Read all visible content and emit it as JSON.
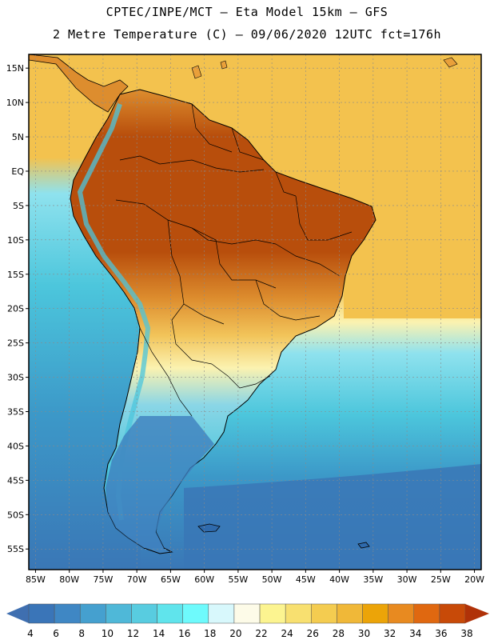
{
  "header": {
    "line1": "CPTEC/INPE/MCT –  Eta Model 15km – GFS",
    "line2": "2 Metre Temperature (C) – 09/06/2020 12UTC fct=176h"
  },
  "map": {
    "lon_range": [
      -86,
      -19
    ],
    "lat_range": [
      17,
      -58
    ],
    "lat_ticks": [
      {
        "value": 15,
        "label": "15N"
      },
      {
        "value": 10,
        "label": "10N"
      },
      {
        "value": 5,
        "label": "5N"
      },
      {
        "value": 0,
        "label": "EQ"
      },
      {
        "value": -5,
        "label": "5S"
      },
      {
        "value": -10,
        "label": "10S"
      },
      {
        "value": -15,
        "label": "15S"
      },
      {
        "value": -20,
        "label": "20S"
      },
      {
        "value": -25,
        "label": "25S"
      },
      {
        "value": -30,
        "label": "30S"
      },
      {
        "value": -35,
        "label": "35S"
      },
      {
        "value": -40,
        "label": "40S"
      },
      {
        "value": -45,
        "label": "45S"
      },
      {
        "value": -50,
        "label": "50S"
      },
      {
        "value": -55,
        "label": "55S"
      }
    ],
    "lon_ticks": [
      {
        "value": -85,
        "label": "85W"
      },
      {
        "value": -80,
        "label": "80W"
      },
      {
        "value": -75,
        "label": "75W"
      },
      {
        "value": -70,
        "label": "70W"
      },
      {
        "value": -65,
        "label": "65W"
      },
      {
        "value": -60,
        "label": "60W"
      },
      {
        "value": -55,
        "label": "55W"
      },
      {
        "value": -50,
        "label": "50W"
      },
      {
        "value": -45,
        "label": "45W"
      },
      {
        "value": -40,
        "label": "40W"
      },
      {
        "value": -35,
        "label": "35W"
      },
      {
        "value": -30,
        "label": "30W"
      },
      {
        "value": -25,
        "label": "25W"
      },
      {
        "value": -20,
        "label": "20W"
      }
    ]
  },
  "colorbar": {
    "below_color": "#3f6fb0",
    "above_color": "#b03208",
    "colors": [
      "#3a75b8",
      "#3f87c4",
      "#45a0cf",
      "#4fb8d8",
      "#58cce0",
      "#60e4ec",
      "#6efafc",
      "#d8f8fc",
      "#fdfbe8",
      "#fcf490",
      "#f8e070",
      "#f4cc50",
      "#f0b838",
      "#eca408",
      "#e88a20",
      "#e06810",
      "#c84a08"
    ],
    "labels": [
      "4",
      "6",
      "8",
      "10",
      "12",
      "14",
      "16",
      "18",
      "20",
      "22",
      "24",
      "26",
      "28",
      "30",
      "32",
      "34",
      "36",
      "38"
    ]
  },
  "colors": {
    "ocean_warm": "#f3c24e",
    "ocean_pale": "#fbf2b0",
    "ocean_light": "#8fe2ee",
    "ocean_mid": "#4cc6dc",
    "ocean_cool": "#3c98c8",
    "ocean_cold": "#3a77b6",
    "land_hot": "#b84e0c",
    "land_warm": "#dd8d2e",
    "land_mild": "#f2c45a",
    "land_cool": "#8ad6e6",
    "land_cold": "#3f80be"
  }
}
